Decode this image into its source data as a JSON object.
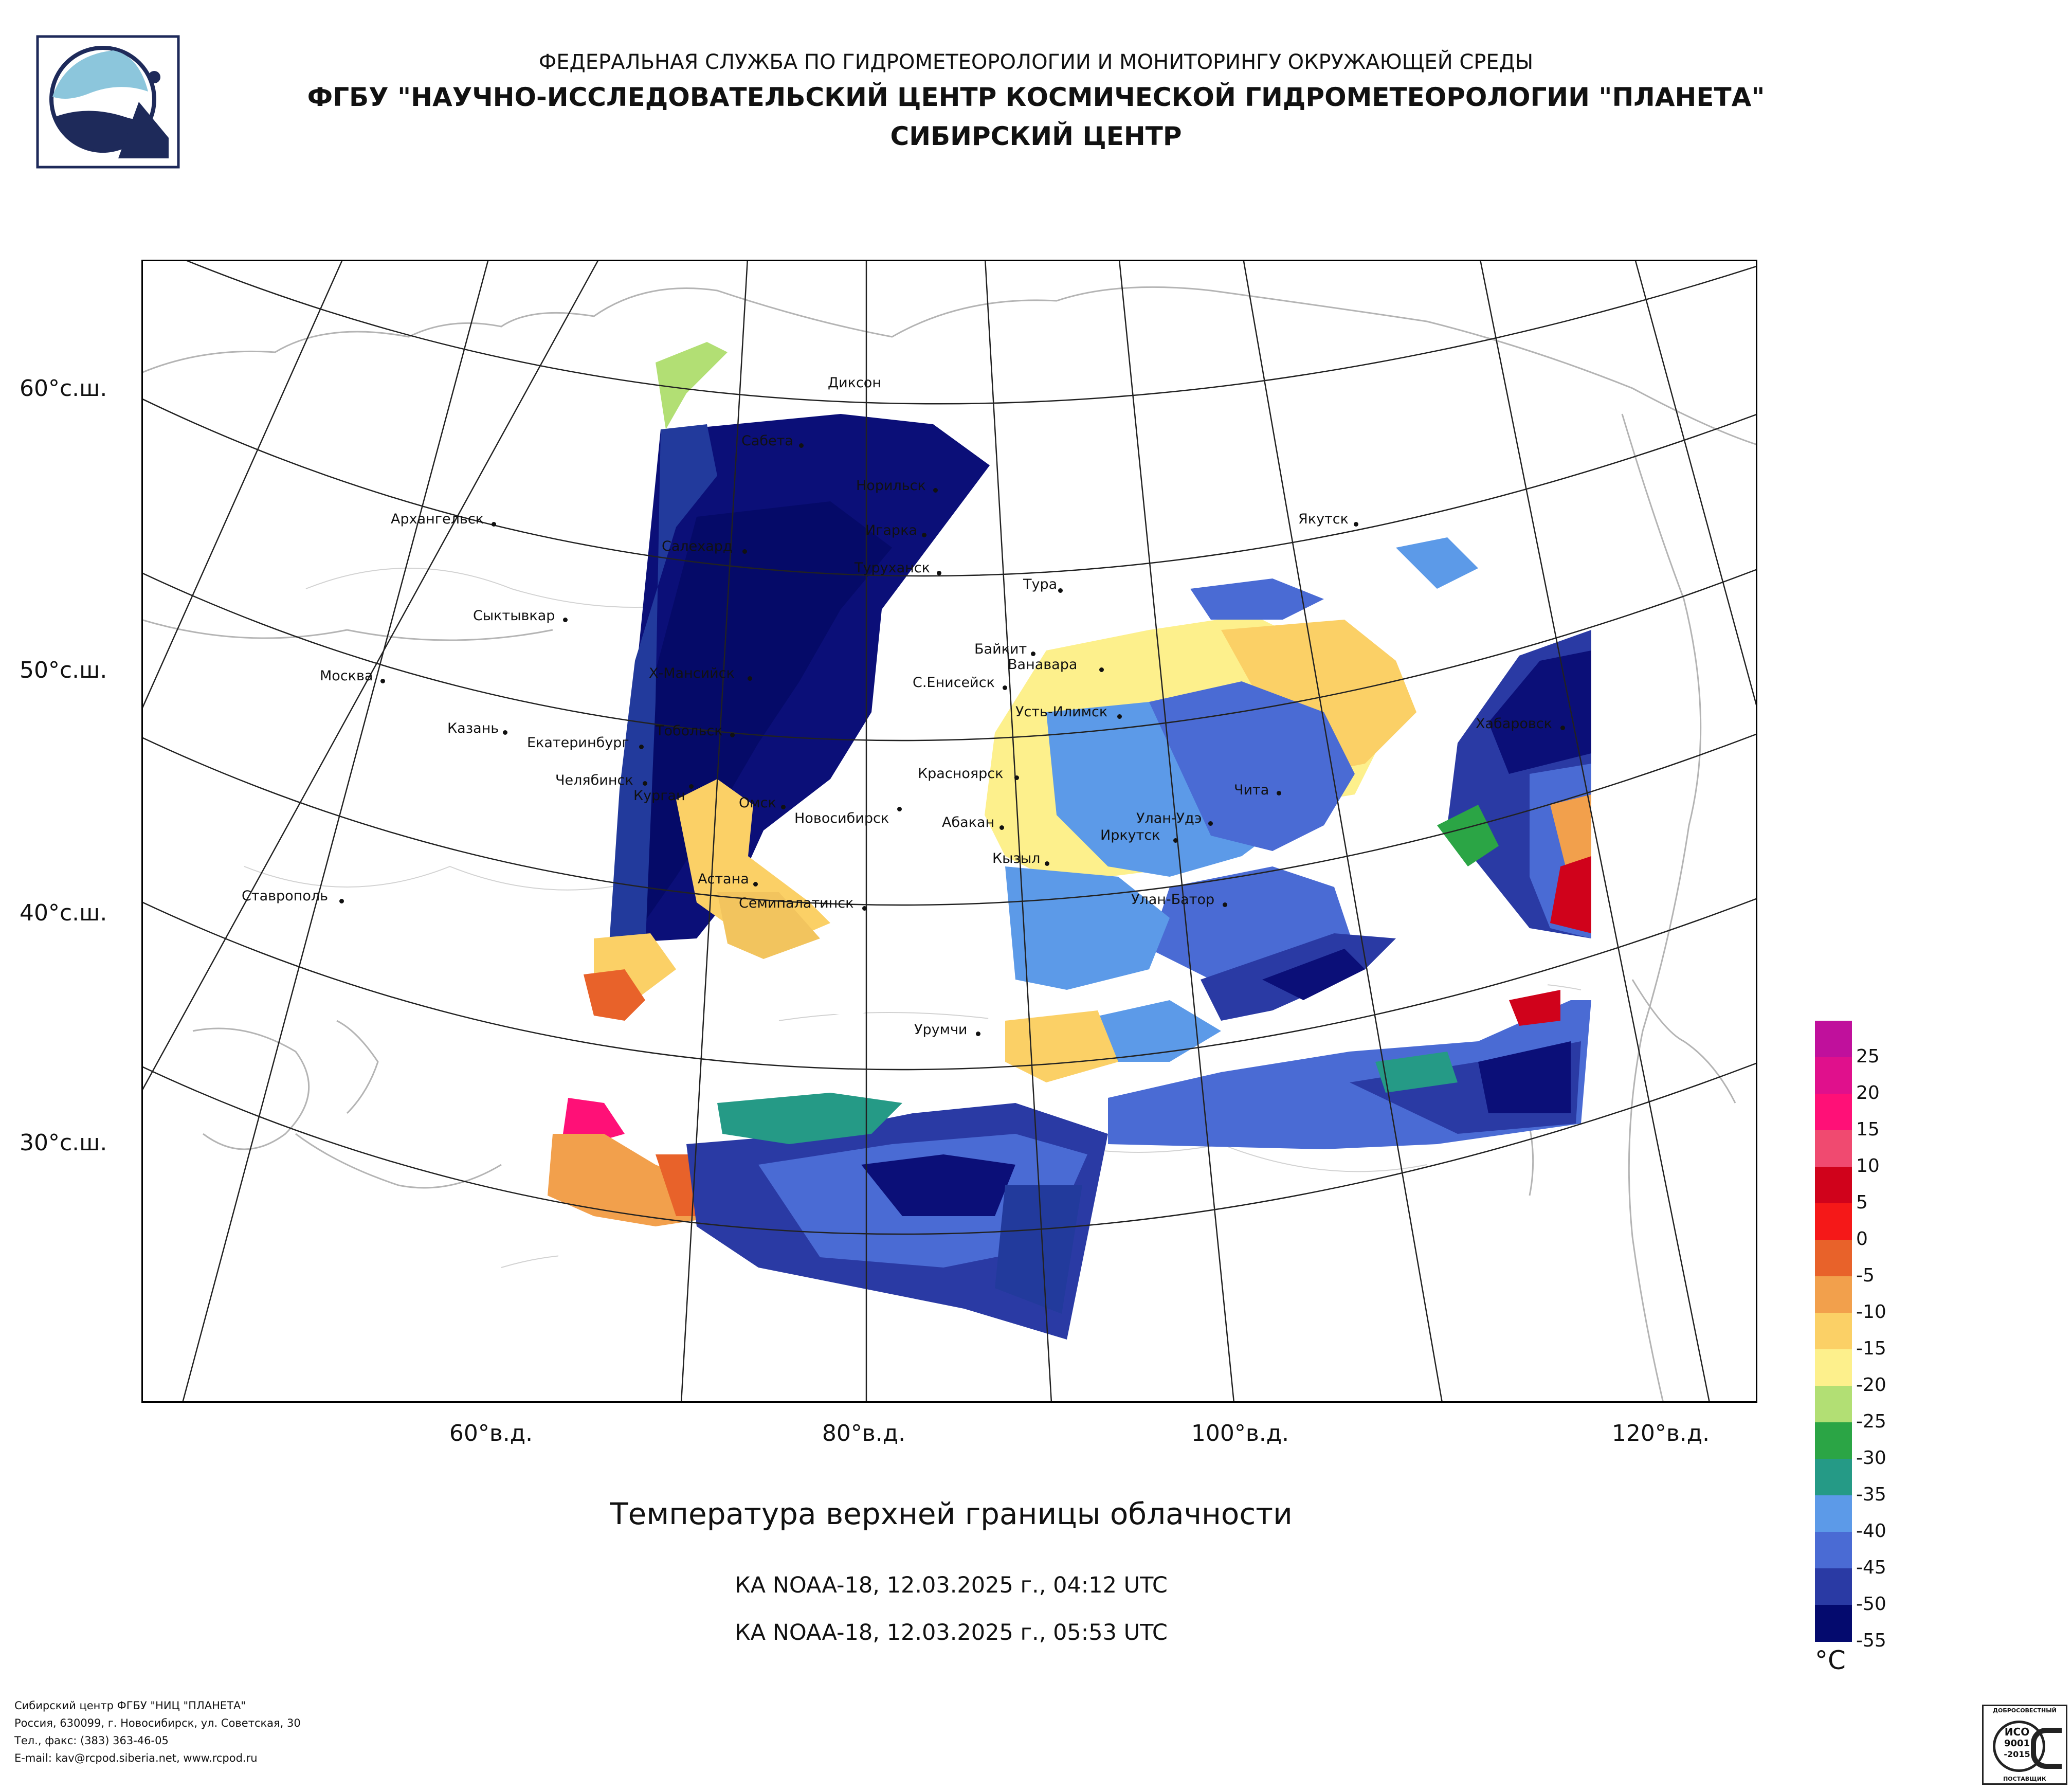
{
  "header": {
    "line1": "ФЕДЕРАЛЬНАЯ СЛУЖБА ПО ГИДРОМЕТЕОРОЛОГИИ И МОНИТОРИНГУ ОКРУЖАЮЩЕЙ СРЕДЫ",
    "line2": "ФГБУ \"НАУЧНО-ИССЛЕДОВАТЕЛЬСКИЙ ЦЕНТР КОСМИЧЕСКОЙ ГИДРОМЕТЕОРОЛОГИИ \"ПЛАНЕТА\"",
    "line3": "СИБИРСКИЙ ЦЕНТР"
  },
  "map": {
    "title": "Температура верхней границы облачности",
    "passes": [
      "КА NOAA-18, 12.03.2025 г., 04:12 UTC",
      "КА NOAA-18, 12.03.2025 г., 05:53 UTC"
    ],
    "lat_labels": [
      "60°с.ш.",
      "50°с.ш.",
      "40°с.ш.",
      "30°с.ш."
    ],
    "lon_labels": [
      "60°в.д.",
      "80°в.д.",
      "100°в.д.",
      "120°в.д."
    ],
    "cities": [
      "Диксон",
      "Сабета",
      "Норильск",
      "Архангельск",
      "Игарка",
      "Салехард",
      "Туруханск",
      "Якутск",
      "Тура",
      "Сыктывкар",
      "Байкит",
      "Ванавара",
      "Москва",
      "Х-Мансийск",
      "С.Енисейск",
      "Усть-Илимск",
      "Хабаровск",
      "Казань",
      "Тобольск",
      "Екатеринбург",
      "Красноярск",
      "Челябинск",
      "Курган",
      "Омск",
      "Новосибирск",
      "Абакан",
      "Чита",
      "Улан-Удэ",
      "Иркутск",
      "Кызыл",
      "Ставрополь",
      "Астана",
      "Семипалатинск",
      "Улан-Батор",
      "Урумчи"
    ]
  },
  "legend": {
    "unit": "°C",
    "labels": [
      "25",
      "20",
      "15",
      "10",
      "5",
      "0",
      "-5",
      "-10",
      "-15",
      "-20",
      "-25",
      "-30",
      "-35",
      "-40",
      "-45",
      "-50",
      "-55"
    ],
    "colors": [
      "#c0109c",
      "#e0108c",
      "#ff1077",
      "#f04a70",
      "#d0021b",
      "#f51818",
      "#e8622a",
      "#f2a04c",
      "#fbd066",
      "#fdf08c",
      "#b2df74",
      "#2ba545",
      "#259a86",
      "#5c9ae8",
      "#4a6bd4",
      "#2a3aa4",
      "#040a6e"
    ]
  },
  "footer": {
    "line1": "Сибирский центр ФГБУ \"НИЦ \"ПЛАНЕТА\"",
    "line2": "Россия, 630099, г. Новосибирск, ул. Советская, 30",
    "line3": "Тел., факс: (383) 363-46-05",
    "line4": "E-mail: kav@rcpod.siberia.net, www.rcpod.ru"
  },
  "iso_badge": {
    "top": "ДОБРОСОВЕСТНЫЙ",
    "line1": "ИСО",
    "line2": "9001",
    "line3": "-2015",
    "bottom": "ПОСТАВЩИК"
  }
}
